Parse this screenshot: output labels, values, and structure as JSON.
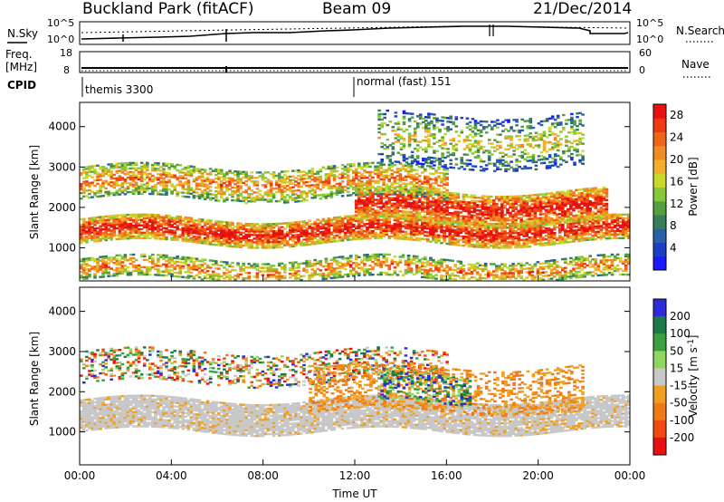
{
  "header": {
    "station": "Buckland Park (fitACF)",
    "beam": "Beam 09",
    "date": "21/Dec/2014"
  },
  "strip_panels": {
    "nsky_label": "N.Sky",
    "nsearch_label": "N.Search",
    "noise_ticks": [
      "10^5",
      "10^0"
    ],
    "freq_label_1": "Freq.",
    "freq_label_2": "[MHz]",
    "nave_label": "Nave",
    "freq_ticks": [
      "18",
      "8"
    ],
    "nave_ticks": [
      "60",
      "0"
    ],
    "cpid_label": "CPID",
    "cpid_segments": [
      {
        "name": "themis 3300",
        "start": "00:00"
      },
      {
        "name": "normal (fast) 151",
        "start": "12:00"
      }
    ]
  },
  "chart_data": [
    {
      "type": "heatmap",
      "title": "",
      "quantity": "Power",
      "xlabel": "",
      "ylabel": "Slant Range [km]",
      "x_ticks": [
        "00:00",
        "04:00",
        "08:00",
        "12:00",
        "16:00",
        "20:00",
        "00:00"
      ],
      "x_range_hours": [
        0,
        24
      ],
      "y_ticks": [
        1000,
        2000,
        3000,
        4000
      ],
      "ylim": [
        180,
        4600
      ],
      "colorbar": {
        "label": "Power [dB]",
        "ticks": [
          "4",
          "8",
          "12",
          "16",
          "20",
          "24",
          "28"
        ],
        "range": [
          0,
          30
        ],
        "colors": [
          "#1a1aff",
          "#1d3fc4",
          "#2a60a8",
          "#3a7d5a",
          "#52a040",
          "#88c838",
          "#c9d82c",
          "#f2b02a",
          "#f08a22",
          "#f0641a",
          "#ee3a14",
          "#e81010"
        ]
      },
      "echo_bands": [
        {
          "feature": "main ionospheric echo band",
          "hours": [
            0,
            24
          ],
          "range_km": [
            1100,
            1700
          ],
          "level": "high"
        },
        {
          "feature": "rising F-region band",
          "hours": [
            12,
            23
          ],
          "range_km": [
            1600,
            2400
          ],
          "level": "high"
        },
        {
          "feature": "upper diffuse band",
          "hours": [
            0,
            16
          ],
          "range_km": [
            2200,
            3000
          ],
          "level": "medium"
        },
        {
          "feature": "sporadic high-range echoes",
          "hours": [
            13,
            22
          ],
          "range_km": [
            3000,
            4300
          ],
          "level": "low"
        },
        {
          "feature": "near-range ground/E echoes",
          "hours": [
            0,
            24
          ],
          "range_km": [
            200,
            700
          ],
          "level": "medium"
        }
      ]
    },
    {
      "type": "heatmap",
      "title": "",
      "quantity": "Velocity",
      "xlabel": "Time UT",
      "ylabel": "Slant Range [km]",
      "x_ticks": [
        "00:00",
        "04:00",
        "08:00",
        "12:00",
        "16:00",
        "20:00",
        "00:00"
      ],
      "x_range_hours": [
        0,
        24
      ],
      "y_ticks": [
        1000,
        2000,
        3000,
        4000
      ],
      "ylim": [
        180,
        4600
      ],
      "colorbar": {
        "label": "Velocity [m s",
        "label_superscript": "-1",
        "label_close": "]",
        "ticks": [
          "200",
          "100",
          "50",
          "15",
          "-15",
          "-50",
          "-100",
          "-200"
        ],
        "bins": [
          "#2b2bd8",
          "#1c7a4a",
          "#3aa040",
          "#8fd860",
          "#c8c8c8",
          "#f0a020",
          "#f07a14",
          "#f04a10",
          "#e81010"
        ]
      },
      "echo_bands": [
        {
          "feature": "low-velocity ground scatter band",
          "hours": [
            0,
            24
          ],
          "range_km": [
            1000,
            1800
          ],
          "level": "grey"
        },
        {
          "feature": "mixed velocity scatter",
          "hours": [
            0,
            16
          ],
          "range_km": [
            2200,
            3000
          ],
          "level": "mixed"
        },
        {
          "feature": "negative velocity (orange) patches",
          "hours": [
            10,
            22
          ],
          "range_km": [
            1500,
            2600
          ],
          "level": "negative"
        },
        {
          "feature": "positive velocity (blue/green) patches",
          "hours": [
            13,
            17
          ],
          "range_km": [
            1700,
            2400
          ],
          "level": "positive"
        }
      ]
    }
  ]
}
